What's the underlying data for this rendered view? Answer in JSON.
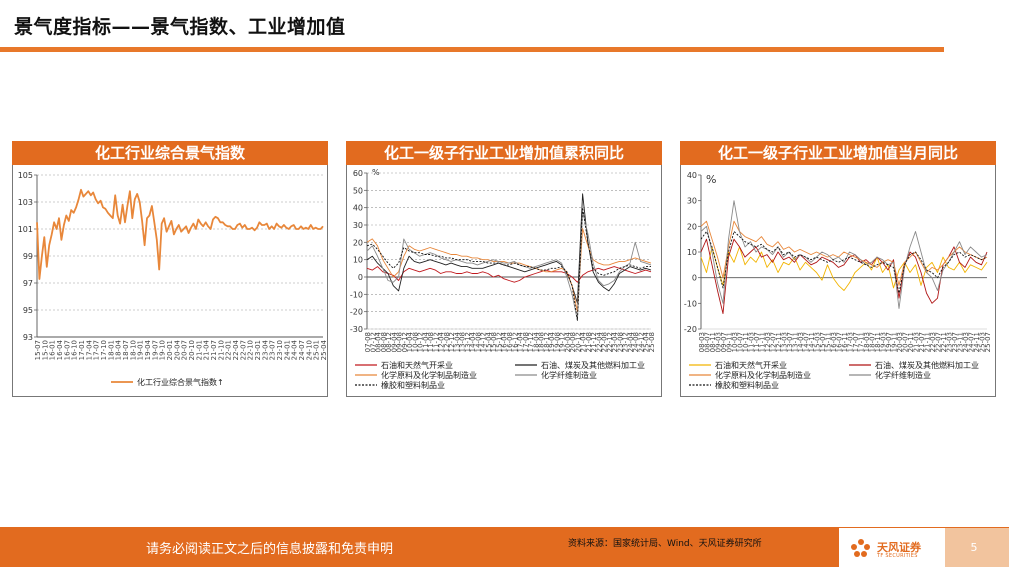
{
  "page": {
    "title": "景气度指标——景气指数、工业增加值",
    "footer_note": "请务必阅读正文之后的信息披露和免责申明",
    "source": "资料来源：国家统计局、Wind、天风证券研究所",
    "logo_text": "天风证券",
    "logo_sub": "TF SECURITIES",
    "page_number": "5",
    "accent": "#E26B1F"
  },
  "chart_data": [
    {
      "type": "line",
      "title": "化工行业综合景气指数",
      "ylim": [
        93,
        105
      ],
      "yticks": [
        93,
        95,
        97,
        99,
        101,
        103,
        105
      ],
      "x_tick_labels": [
        "15-07",
        "15-10",
        "16-01",
        "16-04",
        "16-07",
        "16-10",
        "17-01",
        "17-04",
        "17-07",
        "17-10",
        "18-01",
        "18-04",
        "18-07",
        "18-10",
        "19-01",
        "19-04",
        "19-07",
        "19-10",
        "20-01",
        "20-04",
        "20-07",
        "20-10",
        "21-01",
        "21-04",
        "21-07",
        "21-10",
        "22-01",
        "22-04",
        "22-07",
        "22-10",
        "23-01",
        "23-04",
        "23-07",
        "23-10",
        "24-01",
        "24-04",
        "24-07",
        "24-10",
        "25-01",
        "25-04"
      ],
      "grid": true,
      "legend_position": "bottom",
      "series": [
        {
          "name": "化工行业综合景气指数↑",
          "color": "#E8873A",
          "values": [
            101.5,
            97.3,
            99.0,
            100.4,
            98.2,
            99.8,
            100.6,
            101.5,
            101.0,
            101.8,
            100.2,
            101.3,
            102.0,
            101.6,
            102.4,
            102.2,
            102.6,
            103.2,
            103.9,
            103.4,
            103.6,
            103.8,
            103.5,
            103.7,
            103.2,
            102.9,
            103.1,
            102.6,
            102.5,
            102.2,
            102.0,
            101.8,
            103.5,
            102.0,
            101.4,
            102.8,
            101.5,
            102.7,
            103.8,
            101.8,
            103.2,
            103.6,
            103.0,
            101.6,
            99.8,
            101.8,
            102.0,
            102.7,
            101.5,
            100.2,
            98.0,
            101.4,
            101.8,
            100.8,
            101.2,
            101.6,
            100.6,
            101.0,
            101.3,
            100.8,
            101.0,
            101.2,
            100.7,
            101.1,
            101.4,
            101.0,
            101.7,
            101.4,
            101.2,
            101.5,
            101.2,
            101.0,
            101.7,
            101.9,
            101.8,
            101.5,
            101.5,
            101.3,
            101.2,
            101.2,
            101.0,
            101.0,
            101.3,
            101.4,
            101.1,
            101.3,
            101.0,
            101.0,
            101.1,
            100.9,
            101.1,
            101.5,
            101.3,
            101.3,
            101.4,
            101.0,
            101.2,
            101.0,
            101.4,
            101.2,
            101.1,
            101.3,
            101.1,
            101.0,
            101.2,
            101.3,
            101.0,
            101.0,
            101.2,
            101.0,
            101.1,
            101.0,
            101.3,
            101.0,
            101.1,
            101.0,
            101.0,
            101.2
          ]
        }
      ]
    },
    {
      "type": "line",
      "title": "化工一级子行业工业增加值累积同比",
      "unit": "%",
      "ylim": [
        -30,
        60
      ],
      "yticks": [
        -30,
        -20,
        -10,
        0,
        10,
        20,
        30,
        40,
        50,
        60
      ],
      "x_tick_labels": [
        "07-08",
        "07-12",
        "08-04",
        "08-08",
        "08-12",
        "09-04",
        "09-08",
        "09-12",
        "10-04",
        "10-08",
        "10-12",
        "11-04",
        "11-08",
        "11-12",
        "12-04",
        "12-08",
        "12-12",
        "13-04",
        "13-08",
        "13-12",
        "14-04",
        "14-08",
        "14-12",
        "15-04",
        "15-08",
        "15-12",
        "16-04",
        "16-08",
        "16-12",
        "17-04",
        "17-08",
        "17-12",
        "18-04",
        "18-08",
        "18-12",
        "19-04",
        "19-08",
        "19-12",
        "20-04",
        "20-08",
        "20-12",
        "21-04",
        "21-08",
        "21-12",
        "22-04",
        "22-08",
        "22-12",
        "23-04",
        "23-08",
        "23-12",
        "24-04",
        "24-08",
        "24-12",
        "25-04",
        "25-08"
      ],
      "grid": true,
      "legend_position": "bottom",
      "series": [
        {
          "name": "石油和天然气开采业",
          "color": "#C0191E",
          "values": [
            5,
            4,
            6,
            3,
            2,
            1,
            -2,
            3,
            5,
            4,
            3,
            4,
            5,
            4,
            2,
            3,
            3,
            2,
            2,
            3,
            2,
            2,
            3,
            2,
            0,
            1,
            -1,
            -2,
            -3,
            -2,
            0,
            1,
            2,
            3,
            4,
            3,
            3,
            3,
            2,
            0,
            -3,
            1,
            3,
            4,
            5,
            4,
            5,
            6,
            5,
            4,
            3,
            2,
            3,
            4,
            3
          ]
        },
        {
          "name": "石油、煤炭及其他燃料加工业",
          "color": "#222222",
          "values": [
            10,
            12,
            8,
            5,
            2,
            -5,
            -8,
            5,
            12,
            9,
            8,
            9,
            10,
            9,
            8,
            7,
            8,
            7,
            6,
            6,
            5,
            5,
            5,
            6,
            7,
            8,
            7,
            6,
            5,
            4,
            3,
            4,
            5,
            6,
            7,
            8,
            9,
            7,
            2,
            -5,
            -15,
            48,
            20,
            3,
            -3,
            -6,
            -8,
            -4,
            2,
            4,
            6,
            5,
            4,
            5,
            4
          ]
        },
        {
          "name": "化学原料及化学制品制造业",
          "color": "#E8873A",
          "values": [
            20,
            22,
            18,
            10,
            5,
            0,
            3,
            12,
            18,
            16,
            15,
            16,
            17,
            16,
            15,
            14,
            13,
            13,
            12,
            12,
            11,
            11,
            10,
            10,
            9,
            9,
            9,
            8,
            8,
            8,
            7,
            6,
            5,
            4,
            3,
            3,
            4,
            5,
            3,
            -5,
            -20,
            28,
            18,
            10,
            8,
            7,
            7,
            8,
            9,
            9,
            10,
            11,
            10,
            9,
            8
          ]
        },
        {
          "name": "化学纤维制造业",
          "color": "#8A8A8A",
          "values": [
            15,
            18,
            12,
            5,
            -2,
            -3,
            0,
            22,
            16,
            14,
            12,
            13,
            14,
            13,
            11,
            10,
            9,
            10,
            9,
            8,
            8,
            7,
            8,
            9,
            10,
            9,
            8,
            8,
            9,
            7,
            6,
            5,
            6,
            7,
            8,
            9,
            10,
            8,
            0,
            -10,
            -25,
            38,
            25,
            8,
            -2,
            -5,
            -4,
            -2,
            3,
            6,
            8,
            20,
            9,
            8,
            7
          ]
        },
        {
          "name": "橡胶和塑料制品业",
          "color": "#111111",
          "dashed": true,
          "values": [
            18,
            19,
            16,
            12,
            8,
            5,
            8,
            17,
            15,
            14,
            14,
            13,
            13,
            12,
            12,
            11,
            11,
            10,
            10,
            10,
            9,
            9,
            9,
            8,
            8,
            8,
            7,
            7,
            8,
            7,
            6,
            6,
            5,
            4,
            4,
            5,
            5,
            6,
            3,
            -5,
            -25,
            40,
            20,
            5,
            2,
            1,
            2,
            3,
            5,
            6,
            7,
            6,
            5,
            6,
            6
          ]
        }
      ]
    },
    {
      "type": "line",
      "title": "化工一级子行业工业增加值当月同比",
      "unit": "%",
      "ylim": [
        -20,
        40
      ],
      "yticks": [
        -20,
        -10,
        0,
        10,
        20,
        30,
        40
      ],
      "x_tick_labels": [
        "08-03",
        "08-07",
        "08-11",
        "09-03",
        "09-07",
        "09-11",
        "10-03",
        "10-07",
        "10-11",
        "11-03",
        "11-07",
        "11-11",
        "12-03",
        "12-07",
        "12-11",
        "13-03",
        "13-07",
        "13-11",
        "14-03",
        "14-07",
        "14-11",
        "15-03",
        "15-07",
        "15-11",
        "16-03",
        "16-07",
        "16-11",
        "17-03",
        "17-07",
        "17-11",
        "18-03",
        "18-07",
        "18-11",
        "19-03",
        "19-07",
        "19-11",
        "20-03",
        "20-07",
        "20-11",
        "21-03",
        "21-07",
        "21-11",
        "22-03",
        "22-07",
        "22-11",
        "23-03",
        "23-07",
        "23-11",
        "24-03",
        "24-07",
        "24-11",
        "25-03",
        "25-07"
      ],
      "grid": false,
      "legend_position": "bottom",
      "series": [
        {
          "name": "石油和天然气开采业",
          "color": "#F2B400",
          "values": [
            8,
            2,
            12,
            4,
            -3,
            10,
            6,
            12,
            5,
            8,
            6,
            10,
            4,
            7,
            2,
            6,
            5,
            8,
            3,
            6,
            4,
            2,
            -1,
            5,
            0,
            -3,
            -5,
            -2,
            2,
            4,
            6,
            3,
            8,
            2,
            5,
            -4,
            3,
            6,
            2,
            5,
            -3,
            4,
            6,
            2,
            8,
            4,
            3,
            6,
            2,
            5,
            4,
            3,
            6
          ]
        },
        {
          "name": "石油、煤炭及其他燃料加工业",
          "color": "#B01515",
          "values": [
            10,
            15,
            5,
            -5,
            -14,
            8,
            15,
            12,
            8,
            10,
            12,
            8,
            9,
            6,
            10,
            7,
            8,
            6,
            9,
            7,
            5,
            6,
            8,
            7,
            6,
            4,
            5,
            8,
            9,
            6,
            7,
            5,
            8,
            6,
            3,
            7,
            -8,
            5,
            10,
            8,
            2,
            -6,
            -10,
            -8,
            5,
            8,
            12,
            6,
            4,
            8,
            6,
            5,
            10
          ]
        },
        {
          "name": "化学原料及化学制品制造业",
          "color": "#E8873A",
          "values": [
            20,
            22,
            15,
            8,
            0,
            12,
            22,
            18,
            16,
            15,
            14,
            16,
            13,
            12,
            14,
            11,
            12,
            10,
            11,
            10,
            9,
            10,
            9,
            8,
            9,
            8,
            10,
            9,
            8,
            7,
            6,
            5,
            4,
            6,
            7,
            6,
            -3,
            6,
            8,
            10,
            6,
            2,
            4,
            3,
            5,
            8,
            10,
            12,
            10,
            9,
            8,
            7,
            8
          ]
        },
        {
          "name": "化学纤维制造业",
          "color": "#8A8A8A",
          "values": [
            18,
            20,
            10,
            -2,
            -10,
            15,
            30,
            18,
            12,
            14,
            10,
            12,
            11,
            9,
            12,
            8,
            10,
            7,
            9,
            8,
            6,
            8,
            10,
            9,
            7,
            8,
            6,
            10,
            9,
            7,
            5,
            6,
            8,
            7,
            5,
            6,
            -12,
            4,
            12,
            18,
            10,
            2,
            0,
            -5,
            3,
            6,
            10,
            14,
            9,
            12,
            10,
            8,
            9
          ]
        },
        {
          "name": "橡胶和塑料制品业",
          "color": "#111111",
          "dashed": true,
          "values": [
            15,
            18,
            12,
            4,
            -4,
            10,
            18,
            16,
            14,
            13,
            12,
            13,
            11,
            10,
            12,
            9,
            10,
            8,
            9,
            8,
            7,
            8,
            7,
            6,
            7,
            6,
            7,
            8,
            7,
            6,
            5,
            4,
            5,
            6,
            5,
            4,
            -6,
            5,
            9,
            10,
            7,
            3,
            2,
            0,
            4,
            6,
            9,
            10,
            8,
            9,
            8,
            7,
            8
          ]
        }
      ]
    }
  ]
}
